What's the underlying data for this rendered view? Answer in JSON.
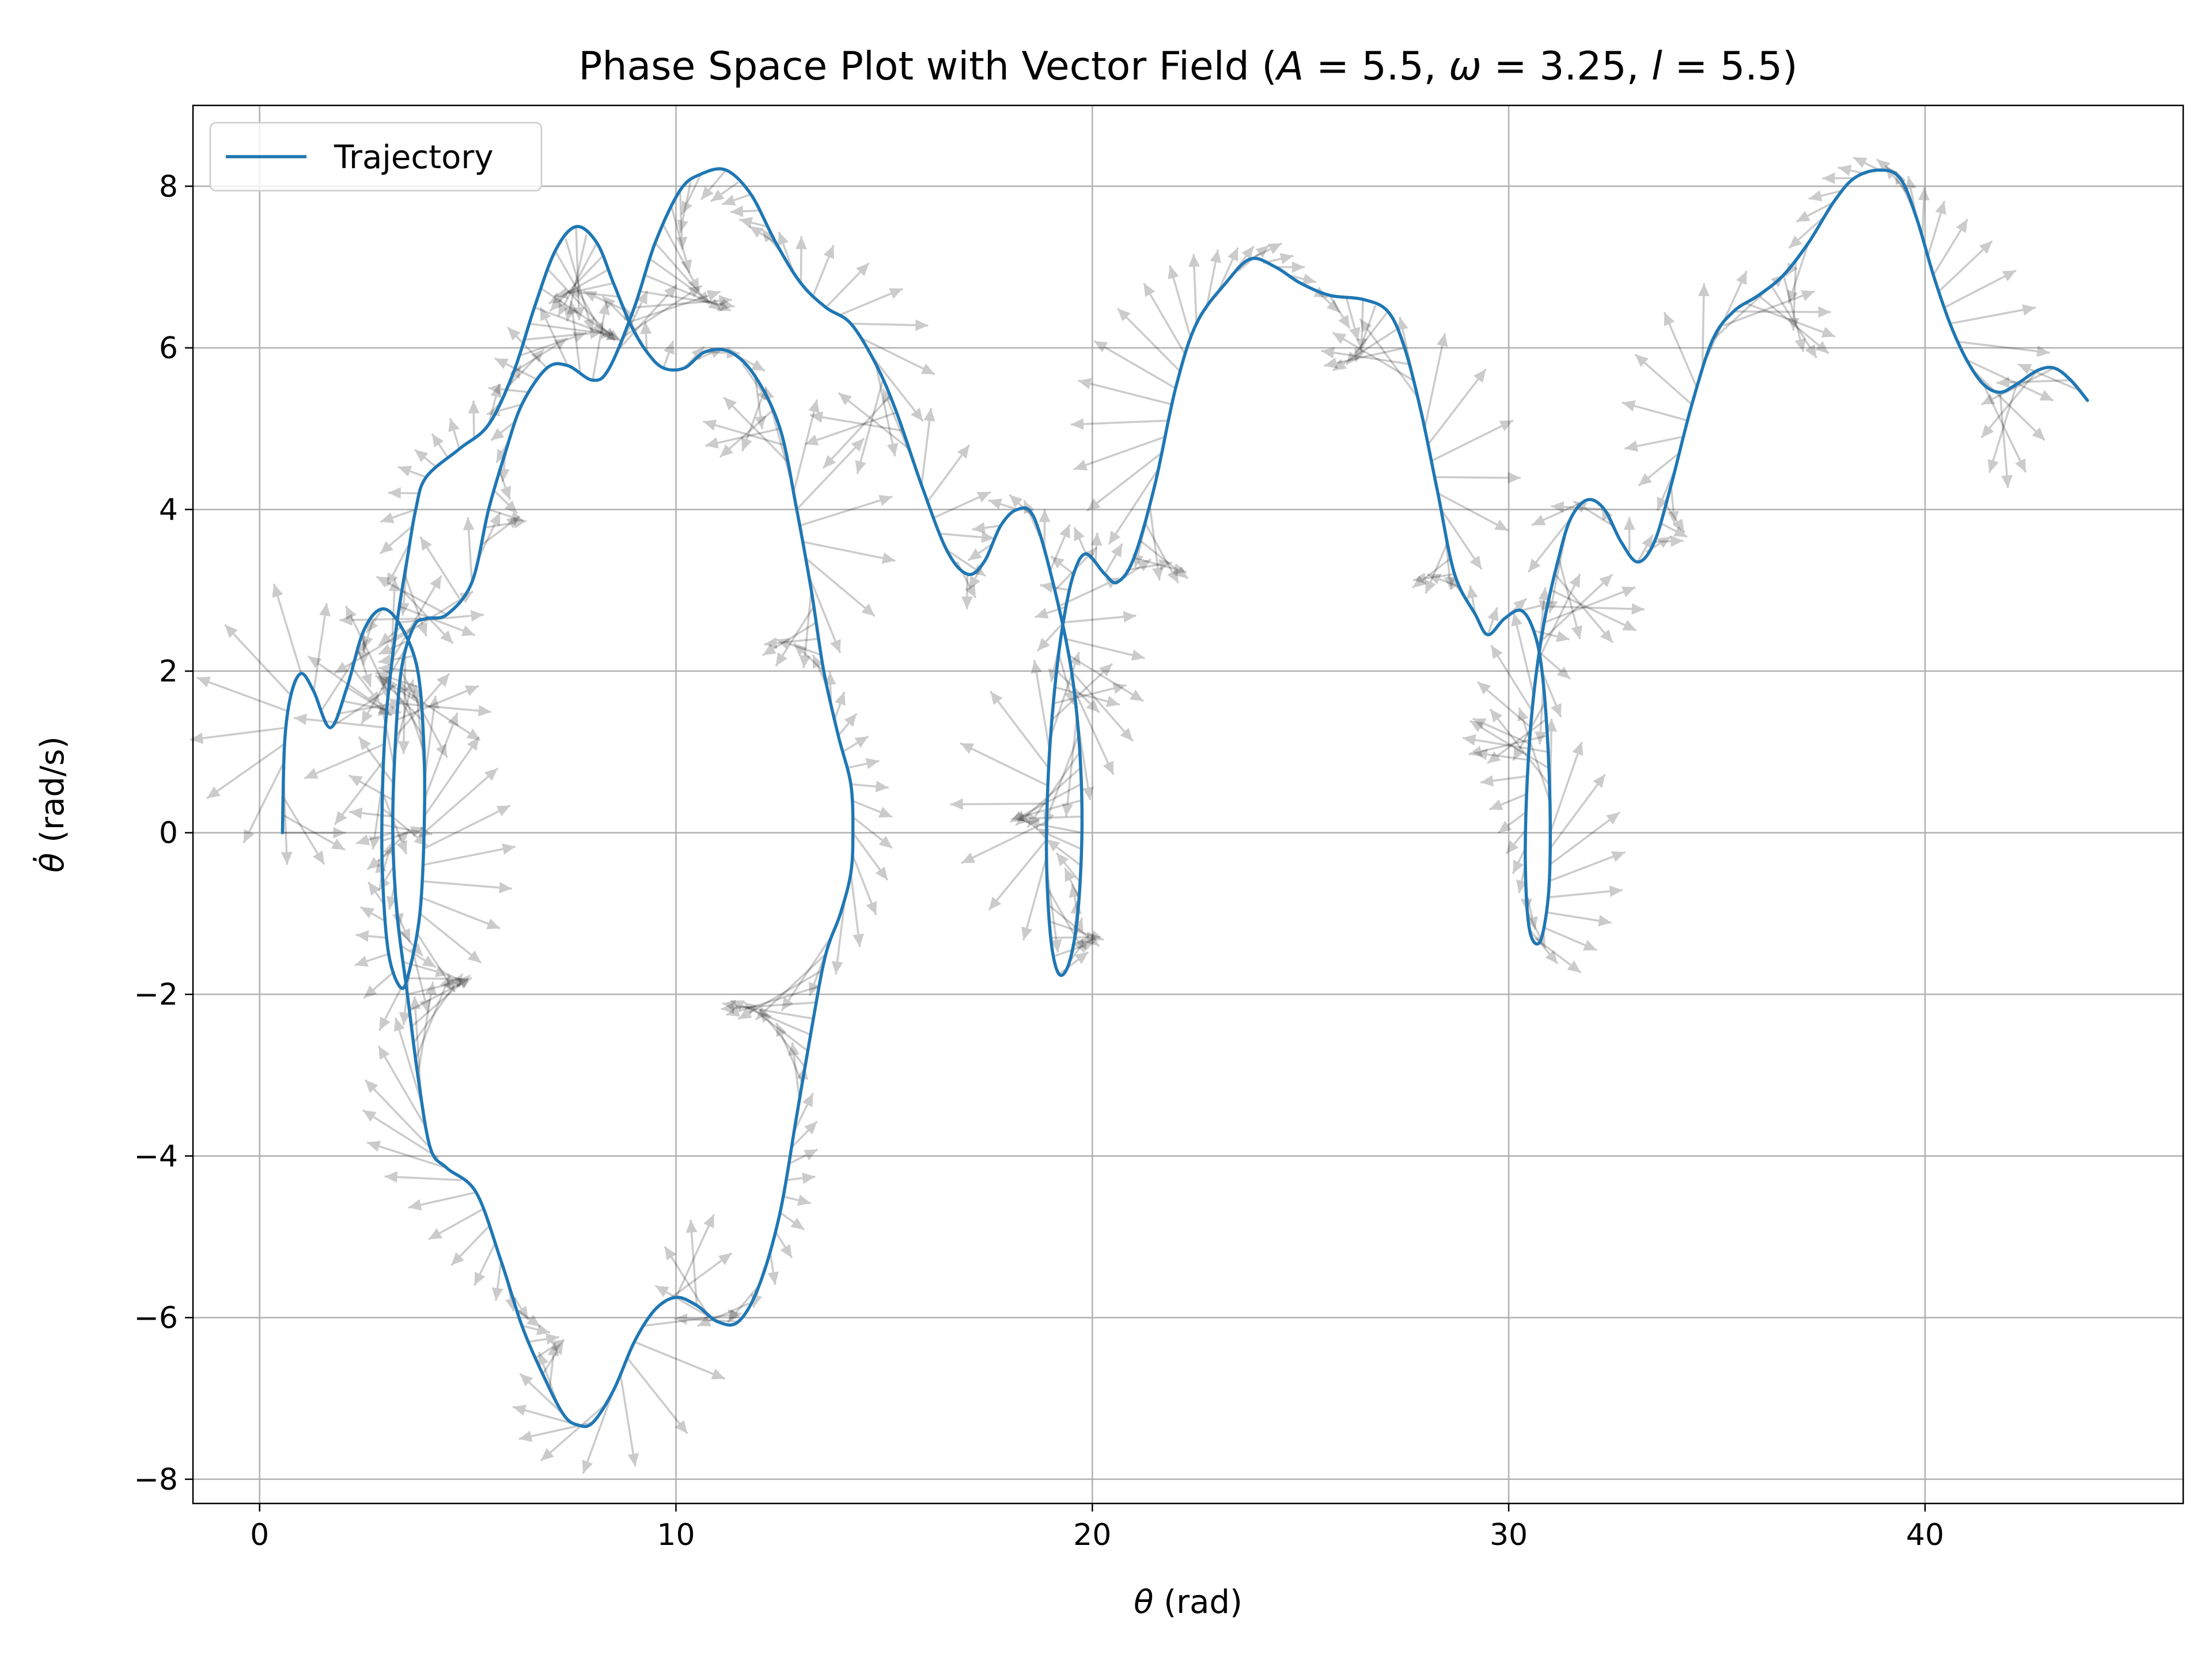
{
  "chart_data": {
    "type": "line",
    "title": "Phase Space Plot with Vector Field (A = 5.5, ω = 3.25, l = 5.5)",
    "title_parts": [
      "Phase Space Plot with Vector Field (",
      "A",
      " = 5.5, ",
      "ω",
      " = 3.25, ",
      "l",
      " = 5.5)"
    ],
    "xlabel_symbol": "θ",
    "xlabel_unit": " (rad)",
    "ylabel_symbol": "θ̇",
    "ylabel_unit": " (rad/s)",
    "xlim": [
      -1.6,
      46.2
    ],
    "ylim": [
      -8.3,
      9.0
    ],
    "xticks": [
      0,
      10,
      20,
      30,
      40
    ],
    "xtick_labels": [
      "0",
      "10",
      "20",
      "30",
      "40"
    ],
    "yticks": [
      -8,
      -6,
      -4,
      -2,
      0,
      2,
      4,
      6,
      8
    ],
    "ytick_labels": [
      "−8",
      "−6",
      "−4",
      "−2",
      "0",
      "2",
      "4",
      "6",
      "8"
    ],
    "grid": true,
    "legend_position": "top-left",
    "series": [
      {
        "name": "Trajectory",
        "color": "#1f77b4",
        "points": [
          [
            0.55,
            0.0
          ],
          [
            0.6,
            1.1
          ],
          [
            0.75,
            1.7
          ],
          [
            1.0,
            1.97
          ],
          [
            1.3,
            1.75
          ],
          [
            1.7,
            1.3
          ],
          [
            2.1,
            1.8
          ],
          [
            2.5,
            2.5
          ],
          [
            2.95,
            2.77
          ],
          [
            3.4,
            2.55
          ],
          [
            3.8,
            2.0
          ],
          [
            3.95,
            1.0
          ],
          [
            3.95,
            0.0
          ],
          [
            3.85,
            -1.0
          ],
          [
            3.6,
            -1.7
          ],
          [
            3.4,
            -1.92
          ],
          [
            3.1,
            -1.5
          ],
          [
            2.95,
            -0.5
          ],
          [
            2.95,
            0.5
          ],
          [
            3.05,
            1.5
          ],
          [
            3.3,
            2.6
          ],
          [
            3.55,
            3.4
          ],
          [
            3.75,
            4.0
          ],
          [
            4.0,
            4.4
          ],
          [
            4.8,
            4.75
          ],
          [
            5.5,
            5.05
          ],
          [
            6.1,
            5.7
          ],
          [
            6.6,
            6.5
          ],
          [
            7.1,
            7.2
          ],
          [
            7.6,
            7.5
          ],
          [
            8.1,
            7.3
          ],
          [
            8.5,
            6.8
          ],
          [
            8.9,
            6.3
          ],
          [
            9.3,
            5.95
          ],
          [
            9.7,
            5.75
          ],
          [
            10.2,
            5.75
          ],
          [
            10.7,
            5.95
          ],
          [
            11.3,
            5.95
          ],
          [
            11.9,
            5.65
          ],
          [
            12.5,
            5.0
          ],
          [
            12.9,
            4.0
          ],
          [
            13.25,
            3.0
          ],
          [
            13.55,
            2.0
          ],
          [
            13.9,
            1.2
          ],
          [
            14.2,
            0.6
          ],
          [
            14.25,
            0.0
          ],
          [
            14.2,
            -0.5
          ],
          [
            13.95,
            -1.0
          ],
          [
            13.6,
            -1.5
          ],
          [
            13.3,
            -2.3
          ],
          [
            12.9,
            -3.5
          ],
          [
            12.5,
            -4.7
          ],
          [
            12.0,
            -5.6
          ],
          [
            11.5,
            -6.05
          ],
          [
            11.0,
            -6.05
          ],
          [
            10.5,
            -5.85
          ],
          [
            10.0,
            -5.75
          ],
          [
            9.5,
            -5.9
          ],
          [
            9.0,
            -6.3
          ],
          [
            8.5,
            -6.9
          ],
          [
            8.0,
            -7.3
          ],
          [
            7.65,
            -7.33
          ],
          [
            7.3,
            -7.2
          ],
          [
            6.8,
            -6.7
          ],
          [
            6.3,
            -6.1
          ],
          [
            5.8,
            -5.3
          ],
          [
            5.2,
            -4.45
          ],
          [
            4.5,
            -4.15
          ],
          [
            4.1,
            -3.9
          ],
          [
            3.8,
            -3.0
          ],
          [
            3.55,
            -2.0
          ],
          [
            3.3,
            -1.0
          ],
          [
            3.2,
            0.0
          ],
          [
            3.25,
            1.0
          ],
          [
            3.4,
            2.0
          ],
          [
            3.7,
            2.55
          ],
          [
            4.0,
            2.65
          ],
          [
            4.5,
            2.7
          ],
          [
            5.1,
            3.1
          ],
          [
            5.5,
            4.0
          ],
          [
            5.9,
            4.7
          ],
          [
            6.3,
            5.3
          ],
          [
            6.9,
            5.75
          ],
          [
            7.4,
            5.78
          ],
          [
            8.0,
            5.6
          ],
          [
            8.4,
            5.75
          ],
          [
            9.0,
            6.5
          ],
          [
            9.5,
            7.3
          ],
          [
            10.1,
            7.95
          ],
          [
            10.6,
            8.15
          ],
          [
            11.2,
            8.2
          ],
          [
            11.8,
            7.9
          ],
          [
            12.4,
            7.3
          ],
          [
            13.0,
            6.8
          ],
          [
            13.6,
            6.5
          ],
          [
            14.2,
            6.3
          ],
          [
            14.8,
            5.8
          ],
          [
            15.3,
            5.2
          ],
          [
            15.9,
            4.3
          ],
          [
            16.5,
            3.5
          ],
          [
            17.0,
            3.2
          ],
          [
            17.4,
            3.35
          ],
          [
            17.8,
            3.8
          ],
          [
            18.2,
            4.0
          ],
          [
            18.6,
            3.9
          ],
          [
            19.1,
            3.0
          ],
          [
            19.5,
            2.0
          ],
          [
            19.7,
            1.0
          ],
          [
            19.75,
            0.0
          ],
          [
            19.65,
            -1.0
          ],
          [
            19.45,
            -1.6
          ],
          [
            19.2,
            -1.75
          ],
          [
            19.0,
            -1.3
          ],
          [
            18.9,
            -0.3
          ],
          [
            18.95,
            0.8
          ],
          [
            19.1,
            1.8
          ],
          [
            19.3,
            2.6
          ],
          [
            19.55,
            3.2
          ],
          [
            19.85,
            3.45
          ],
          [
            20.3,
            3.2
          ],
          [
            20.6,
            3.1
          ],
          [
            21.0,
            3.4
          ],
          [
            21.5,
            4.3
          ],
          [
            22.0,
            5.5
          ],
          [
            22.5,
            6.3
          ],
          [
            23.2,
            6.8
          ],
          [
            23.8,
            7.1
          ],
          [
            24.4,
            7.0
          ],
          [
            25.0,
            6.8
          ],
          [
            25.7,
            6.65
          ],
          [
            26.5,
            6.6
          ],
          [
            27.1,
            6.45
          ],
          [
            27.5,
            6.0
          ],
          [
            27.9,
            5.2
          ],
          [
            28.3,
            4.2
          ],
          [
            28.7,
            3.2
          ],
          [
            29.2,
            2.7
          ],
          [
            29.5,
            2.45
          ],
          [
            29.9,
            2.65
          ],
          [
            30.3,
            2.75
          ],
          [
            30.6,
            2.5
          ],
          [
            30.8,
            2.0
          ],
          [
            30.95,
            1.0
          ],
          [
            31.0,
            0.0
          ],
          [
            30.95,
            -0.8
          ],
          [
            30.75,
            -1.35
          ],
          [
            30.5,
            -1.2
          ],
          [
            30.4,
            -0.4
          ],
          [
            30.45,
            0.7
          ],
          [
            30.6,
            1.7
          ],
          [
            30.85,
            2.6
          ],
          [
            31.2,
            3.4
          ],
          [
            31.5,
            3.9
          ],
          [
            31.9,
            4.12
          ],
          [
            32.3,
            4.0
          ],
          [
            32.7,
            3.6
          ],
          [
            33.1,
            3.35
          ],
          [
            33.5,
            3.6
          ],
          [
            33.9,
            4.3
          ],
          [
            34.4,
            5.3
          ],
          [
            34.9,
            6.1
          ],
          [
            35.4,
            6.45
          ],
          [
            36.0,
            6.65
          ],
          [
            36.6,
            6.9
          ],
          [
            37.2,
            7.3
          ],
          [
            37.8,
            7.8
          ],
          [
            38.3,
            8.1
          ],
          [
            38.9,
            8.2
          ],
          [
            39.4,
            8.1
          ],
          [
            39.8,
            7.6
          ],
          [
            40.2,
            6.9
          ],
          [
            40.6,
            6.3
          ],
          [
            41.0,
            5.85
          ],
          [
            41.4,
            5.55
          ],
          [
            41.8,
            5.45
          ],
          [
            42.2,
            5.55
          ],
          [
            42.7,
            5.72
          ],
          [
            43.1,
            5.75
          ],
          [
            43.5,
            5.6
          ],
          [
            43.9,
            5.35
          ]
        ]
      }
    ]
  }
}
